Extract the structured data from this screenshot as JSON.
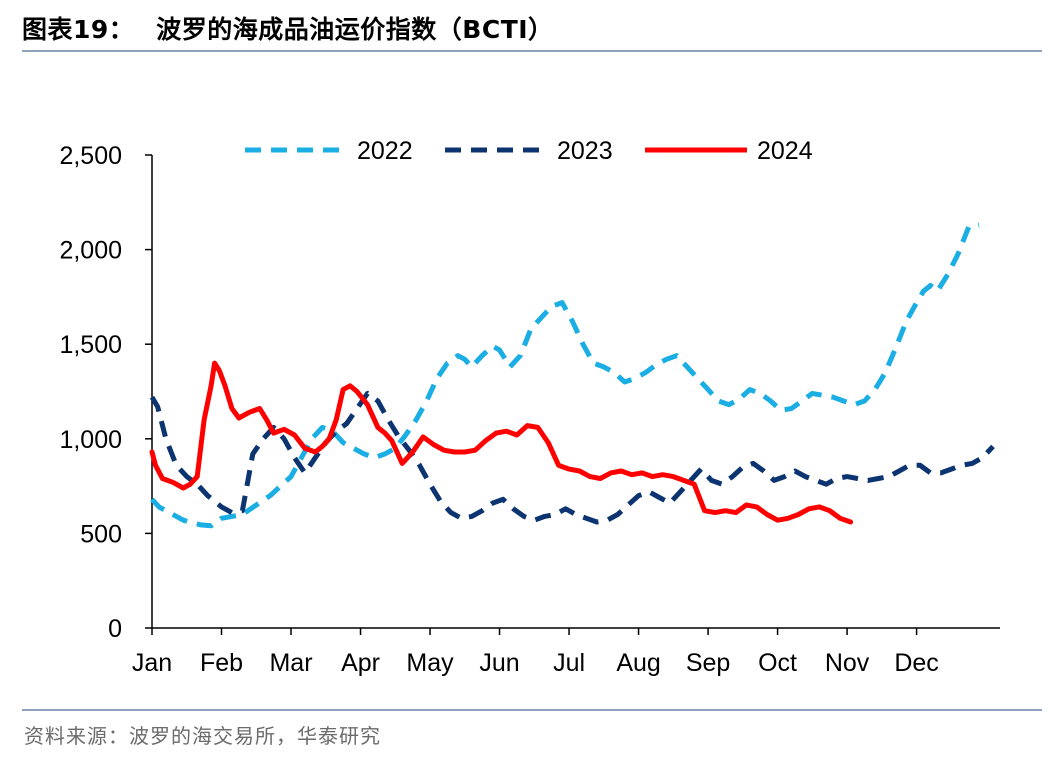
{
  "header": {
    "figure_label": "图表19：",
    "figure_title": "波罗的海成品油运价指数（BCTI）"
  },
  "footer": {
    "source": "资料来源：波罗的海交易所，华泰研究"
  },
  "colors": {
    "series_2022": "#1aaee5",
    "series_2023": "#0b3470",
    "series_2024": "#ff0000",
    "rule": "#8ea2bd",
    "axis": "#000000"
  },
  "chart_data": {
    "type": "line",
    "title": "波罗的海成品油运价指数（BCTI）",
    "xlabel": "",
    "ylabel": "",
    "ylim": [
      0,
      2500
    ],
    "yticks": [
      0,
      500,
      1000,
      1500,
      2000,
      2500
    ],
    "ytick_labels": [
      "0",
      "500",
      "1,000",
      "1,500",
      "2,000",
      "2,500"
    ],
    "xlim": [
      1,
      13.2
    ],
    "xticks": [
      1,
      2,
      3,
      4,
      5,
      6,
      7,
      8,
      9,
      10,
      11,
      12
    ],
    "xtick_labels": [
      "Jan",
      "Feb",
      "Mar",
      "Apr",
      "May",
      "Jun",
      "Jul",
      "Aug",
      "Sep",
      "Oct",
      "Nov",
      "Dec"
    ],
    "grid": false,
    "legend_position": "top",
    "series": [
      {
        "name": "2022",
        "style": "dashed",
        "color": "#1aaee5",
        "x": [
          1,
          1.1,
          1.25,
          1.45,
          1.7,
          1.85,
          2.0,
          2.15,
          2.3,
          2.5,
          2.7,
          2.85,
          3.0,
          3.15,
          3.3,
          3.45,
          3.6,
          3.75,
          3.9,
          4.05,
          4.2,
          4.35,
          4.5,
          4.65,
          4.8,
          4.95,
          5.1,
          5.25,
          5.4,
          5.5,
          5.6,
          5.75,
          5.9,
          6.0,
          6.15,
          6.3,
          6.45,
          6.6,
          6.75,
          6.9,
          7.05,
          7.2,
          7.35,
          7.5,
          7.65,
          7.8,
          7.95,
          8.1,
          8.25,
          8.4,
          8.55,
          8.7,
          8.85,
          9.0,
          9.15,
          9.3,
          9.45,
          9.6,
          9.75,
          9.9,
          10.05,
          10.2,
          10.35,
          10.5,
          10.65,
          10.8,
          10.95,
          11.1,
          11.25,
          11.4,
          11.55,
          11.7,
          11.85,
          12.0,
          12.1,
          12.2,
          12.3,
          12.45,
          12.6,
          12.75,
          12.9
        ],
        "y": [
          680,
          640,
          610,
          570,
          545,
          540,
          580,
          590,
          600,
          650,
          700,
          750,
          800,
          900,
          1000,
          1060,
          1040,
          980,
          950,
          920,
          900,
          920,
          950,
          1020,
          1100,
          1200,
          1320,
          1400,
          1440,
          1420,
          1380,
          1440,
          1490,
          1470,
          1380,
          1440,
          1580,
          1640,
          1700,
          1720,
          1620,
          1500,
          1400,
          1380,
          1350,
          1300,
          1320,
          1350,
          1390,
          1420,
          1440,
          1380,
          1320,
          1260,
          1200,
          1180,
          1210,
          1260,
          1240,
          1200,
          1150,
          1160,
          1200,
          1240,
          1230,
          1220,
          1200,
          1180,
          1200,
          1260,
          1350,
          1480,
          1620,
          1720,
          1780,
          1810,
          1780,
          1870,
          1980,
          2120,
          2130
        ]
      },
      {
        "name": "2023",
        "style": "dashed",
        "color": "#0b3470",
        "x": [
          1,
          1.08,
          1.2,
          1.35,
          1.5,
          1.65,
          1.8,
          2.0,
          2.15,
          2.3,
          2.45,
          2.6,
          2.75,
          2.9,
          3.05,
          3.2,
          3.35,
          3.5,
          3.65,
          3.8,
          3.95,
          4.1,
          4.25,
          4.4,
          4.55,
          4.7,
          4.85,
          5.0,
          5.15,
          5.3,
          5.45,
          5.6,
          5.75,
          5.9,
          6.05,
          6.2,
          6.35,
          6.5,
          6.65,
          6.8,
          6.95,
          7.1,
          7.25,
          7.4,
          7.55,
          7.7,
          7.85,
          8.0,
          8.15,
          8.3,
          8.45,
          8.6,
          8.75,
          8.9,
          9.05,
          9.2,
          9.35,
          9.5,
          9.65,
          9.8,
          9.95,
          10.1,
          10.25,
          10.4,
          10.55,
          10.7,
          10.85,
          11.0,
          11.15,
          11.3,
          11.45,
          11.6,
          11.75,
          11.9,
          12.05,
          12.2,
          12.35,
          12.5,
          12.65,
          12.8,
          12.95,
          13.1
        ],
        "y": [
          1220,
          1170,
          1000,
          860,
          800,
          760,
          700,
          640,
          610,
          620,
          920,
          1000,
          1060,
          1000,
          900,
          820,
          900,
          980,
          1040,
          1080,
          1160,
          1240,
          1200,
          1100,
          1010,
          940,
          860,
          760,
          670,
          610,
          580,
          590,
          620,
          660,
          680,
          630,
          590,
          570,
          590,
          600,
          630,
          600,
          580,
          560,
          570,
          600,
          650,
          700,
          720,
          690,
          660,
          720,
          780,
          840,
          780,
          760,
          800,
          850,
          870,
          830,
          780,
          800,
          830,
          800,
          780,
          760,
          790,
          800,
          790,
          780,
          790,
          800,
          830,
          860,
          860,
          820,
          820,
          840,
          860,
          870,
          900,
          960
        ]
      },
      {
        "name": "2024",
        "style": "solid",
        "color": "#ff0000",
        "x": [
          1,
          1.05,
          1.15,
          1.3,
          1.45,
          1.55,
          1.65,
          1.75,
          1.85,
          1.9,
          1.97,
          2.05,
          2.15,
          2.25,
          2.4,
          2.55,
          2.65,
          2.75,
          2.9,
          3.05,
          3.2,
          3.35,
          3.45,
          3.55,
          3.65,
          3.75,
          3.85,
          3.95,
          4.1,
          4.25,
          4.35,
          4.45,
          4.6,
          4.75,
          4.9,
          5.05,
          5.2,
          5.35,
          5.5,
          5.65,
          5.8,
          5.95,
          6.1,
          6.25,
          6.4,
          6.55,
          6.7,
          6.85,
          7.0,
          7.15,
          7.3,
          7.45,
          7.6,
          7.75,
          7.9,
          8.05,
          8.2,
          8.35,
          8.5,
          8.65,
          8.8,
          8.95,
          9.1,
          9.25,
          9.4,
          9.55,
          9.7,
          9.85,
          10.0,
          10.15,
          10.3,
          10.45,
          10.6,
          10.75,
          10.9,
          11.05
        ],
        "y": [
          930,
          860,
          790,
          770,
          740,
          760,
          800,
          1100,
          1280,
          1400,
          1360,
          1280,
          1160,
          1110,
          1140,
          1160,
          1100,
          1030,
          1050,
          1020,
          950,
          930,
          960,
          1000,
          1100,
          1260,
          1280,
          1250,
          1180,
          1060,
          1030,
          990,
          870,
          930,
          1010,
          970,
          940,
          930,
          930,
          940,
          990,
          1030,
          1040,
          1020,
          1070,
          1060,
          980,
          860,
          840,
          830,
          800,
          790,
          820,
          830,
          810,
          820,
          800,
          810,
          800,
          780,
          760,
          620,
          610,
          620,
          610,
          650,
          640,
          600,
          570,
          580,
          600,
          630,
          640,
          620,
          580,
          560
        ]
      }
    ]
  }
}
